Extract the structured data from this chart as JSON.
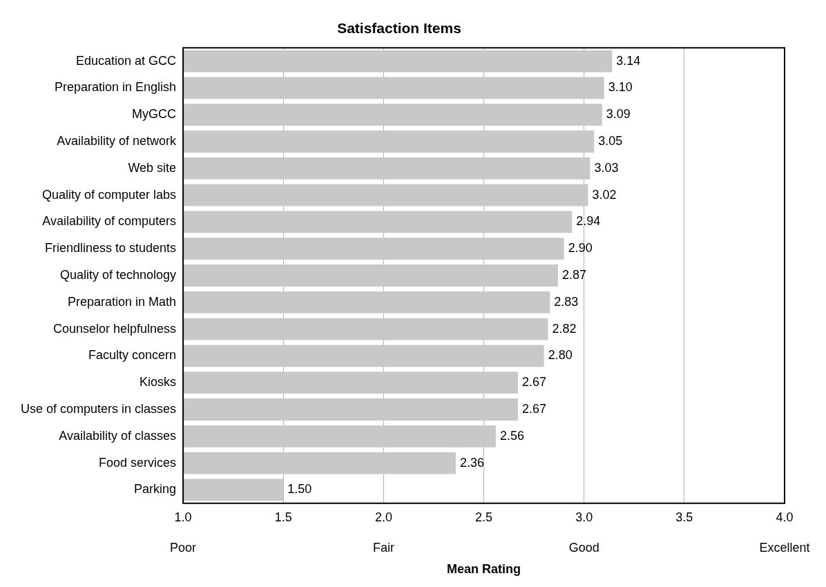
{
  "chart_data": {
    "type": "bar",
    "orientation": "horizontal",
    "title": "Satisfaction Items",
    "xlabel": "Mean Rating",
    "categories": [
      "Education at GCC",
      "Preparation in English",
      "MyGCC",
      "Availability of network",
      "Web site",
      "Quality of computer labs",
      "Availability of computers",
      "Friendliness to students",
      "Quality of technology",
      "Preparation in Math",
      "Counselor helpfulness",
      "Faculty concern",
      "Kiosks",
      "Use of computers in classes",
      "Availability of classes",
      "Food services",
      "Parking"
    ],
    "values": [
      3.14,
      3.1,
      3.09,
      3.05,
      3.03,
      3.02,
      2.94,
      2.9,
      2.87,
      2.83,
      2.82,
      2.8,
      2.67,
      2.67,
      2.56,
      2.36,
      1.5
    ],
    "value_labels": [
      "3.14",
      "3.10",
      "3.09",
      "3.05",
      "3.03",
      "3.02",
      "2.94",
      "2.90",
      "2.87",
      "2.83",
      "2.82",
      "2.80",
      "2.67",
      "2.67",
      "2.56",
      "2.36",
      "1.50"
    ],
    "color": "#c8c8c8",
    "xlim": [
      1,
      4
    ],
    "xticks": [
      {
        "value": 1,
        "label": "1.0"
      },
      {
        "value": 1.5,
        "label": "1.5"
      },
      {
        "value": 2,
        "label": "2.0"
      },
      {
        "value": 2.5,
        "label": "2.5"
      },
      {
        "value": 3,
        "label": "3.0"
      },
      {
        "value": 3.5,
        "label": "3.5"
      },
      {
        "value": 4,
        "label": "4.0"
      }
    ],
    "annotations": [
      "Poor",
      "Fair",
      "Good",
      "Excellent"
    ],
    "grid": "x"
  }
}
